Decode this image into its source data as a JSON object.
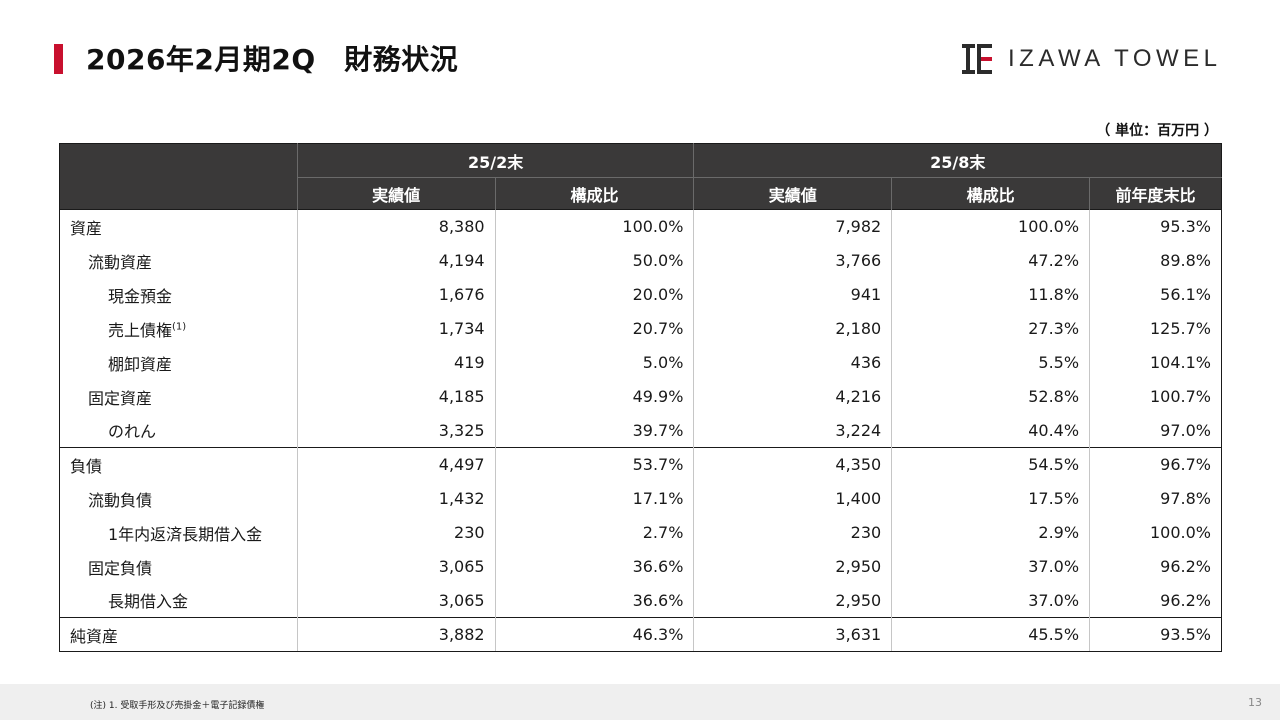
{
  "title": "2026年2月期2Q　財務状況",
  "logo_text": "IZAWA TOWEL",
  "unit": "（ 単位：百万円 ）",
  "table": {
    "groups": [
      "25/2末",
      "25/8末"
    ],
    "subheaders": [
      "実績値",
      "構成比",
      "実績値",
      "構成比",
      "前年度末比"
    ],
    "rows": [
      {
        "label": "資産",
        "sup": "",
        "v": [
          "8,380",
          "100.0%",
          "7,982",
          "100.0%",
          "95.3%"
        ]
      },
      {
        "label": "流動資産",
        "sup": "",
        "v": [
          "4,194",
          "50.0%",
          "3,766",
          "47.2%",
          "89.8%"
        ]
      },
      {
        "label": "現金預金",
        "sup": "",
        "v": [
          "1,676",
          "20.0%",
          "941",
          "11.8%",
          "56.1%"
        ]
      },
      {
        "label": "売上債権",
        "sup": "(1)",
        "v": [
          "1,734",
          "20.7%",
          "2,180",
          "27.3%",
          "125.7%"
        ]
      },
      {
        "label": "棚卸資産",
        "sup": "",
        "v": [
          "419",
          "5.0%",
          "436",
          "5.5%",
          "104.1%"
        ]
      },
      {
        "label": "固定資産",
        "sup": "",
        "v": [
          "4,185",
          "49.9%",
          "4,216",
          "52.8%",
          "100.7%"
        ]
      },
      {
        "label": "のれん",
        "sup": "",
        "v": [
          "3,325",
          "39.7%",
          "3,224",
          "40.4%",
          "97.0%"
        ]
      },
      {
        "label": "負債",
        "sup": "",
        "v": [
          "4,497",
          "53.7%",
          "4,350",
          "54.5%",
          "96.7%"
        ]
      },
      {
        "label": "流動負債",
        "sup": "",
        "v": [
          "1,432",
          "17.1%",
          "1,400",
          "17.5%",
          "97.8%"
        ]
      },
      {
        "label": "1年内返済長期借入金",
        "sup": "",
        "v": [
          "230",
          "2.7%",
          "230",
          "2.9%",
          "100.0%"
        ]
      },
      {
        "label": "固定負債",
        "sup": "",
        "v": [
          "3,065",
          "36.6%",
          "2,950",
          "37.0%",
          "96.2%"
        ]
      },
      {
        "label": "長期借入金",
        "sup": "",
        "v": [
          "3,065",
          "36.6%",
          "2,950",
          "37.0%",
          "96.2%"
        ]
      },
      {
        "label": "純資産",
        "sup": "",
        "v": [
          "3,882",
          "46.3%",
          "3,631",
          "45.5%",
          "93.5%"
        ]
      }
    ]
  },
  "footnote": "(注) 1. 受取手形及び売掛金＋電子記録債権",
  "page_number": "13",
  "colors": {
    "accent": "#c8102e",
    "header_bg": "#3a3939"
  }
}
